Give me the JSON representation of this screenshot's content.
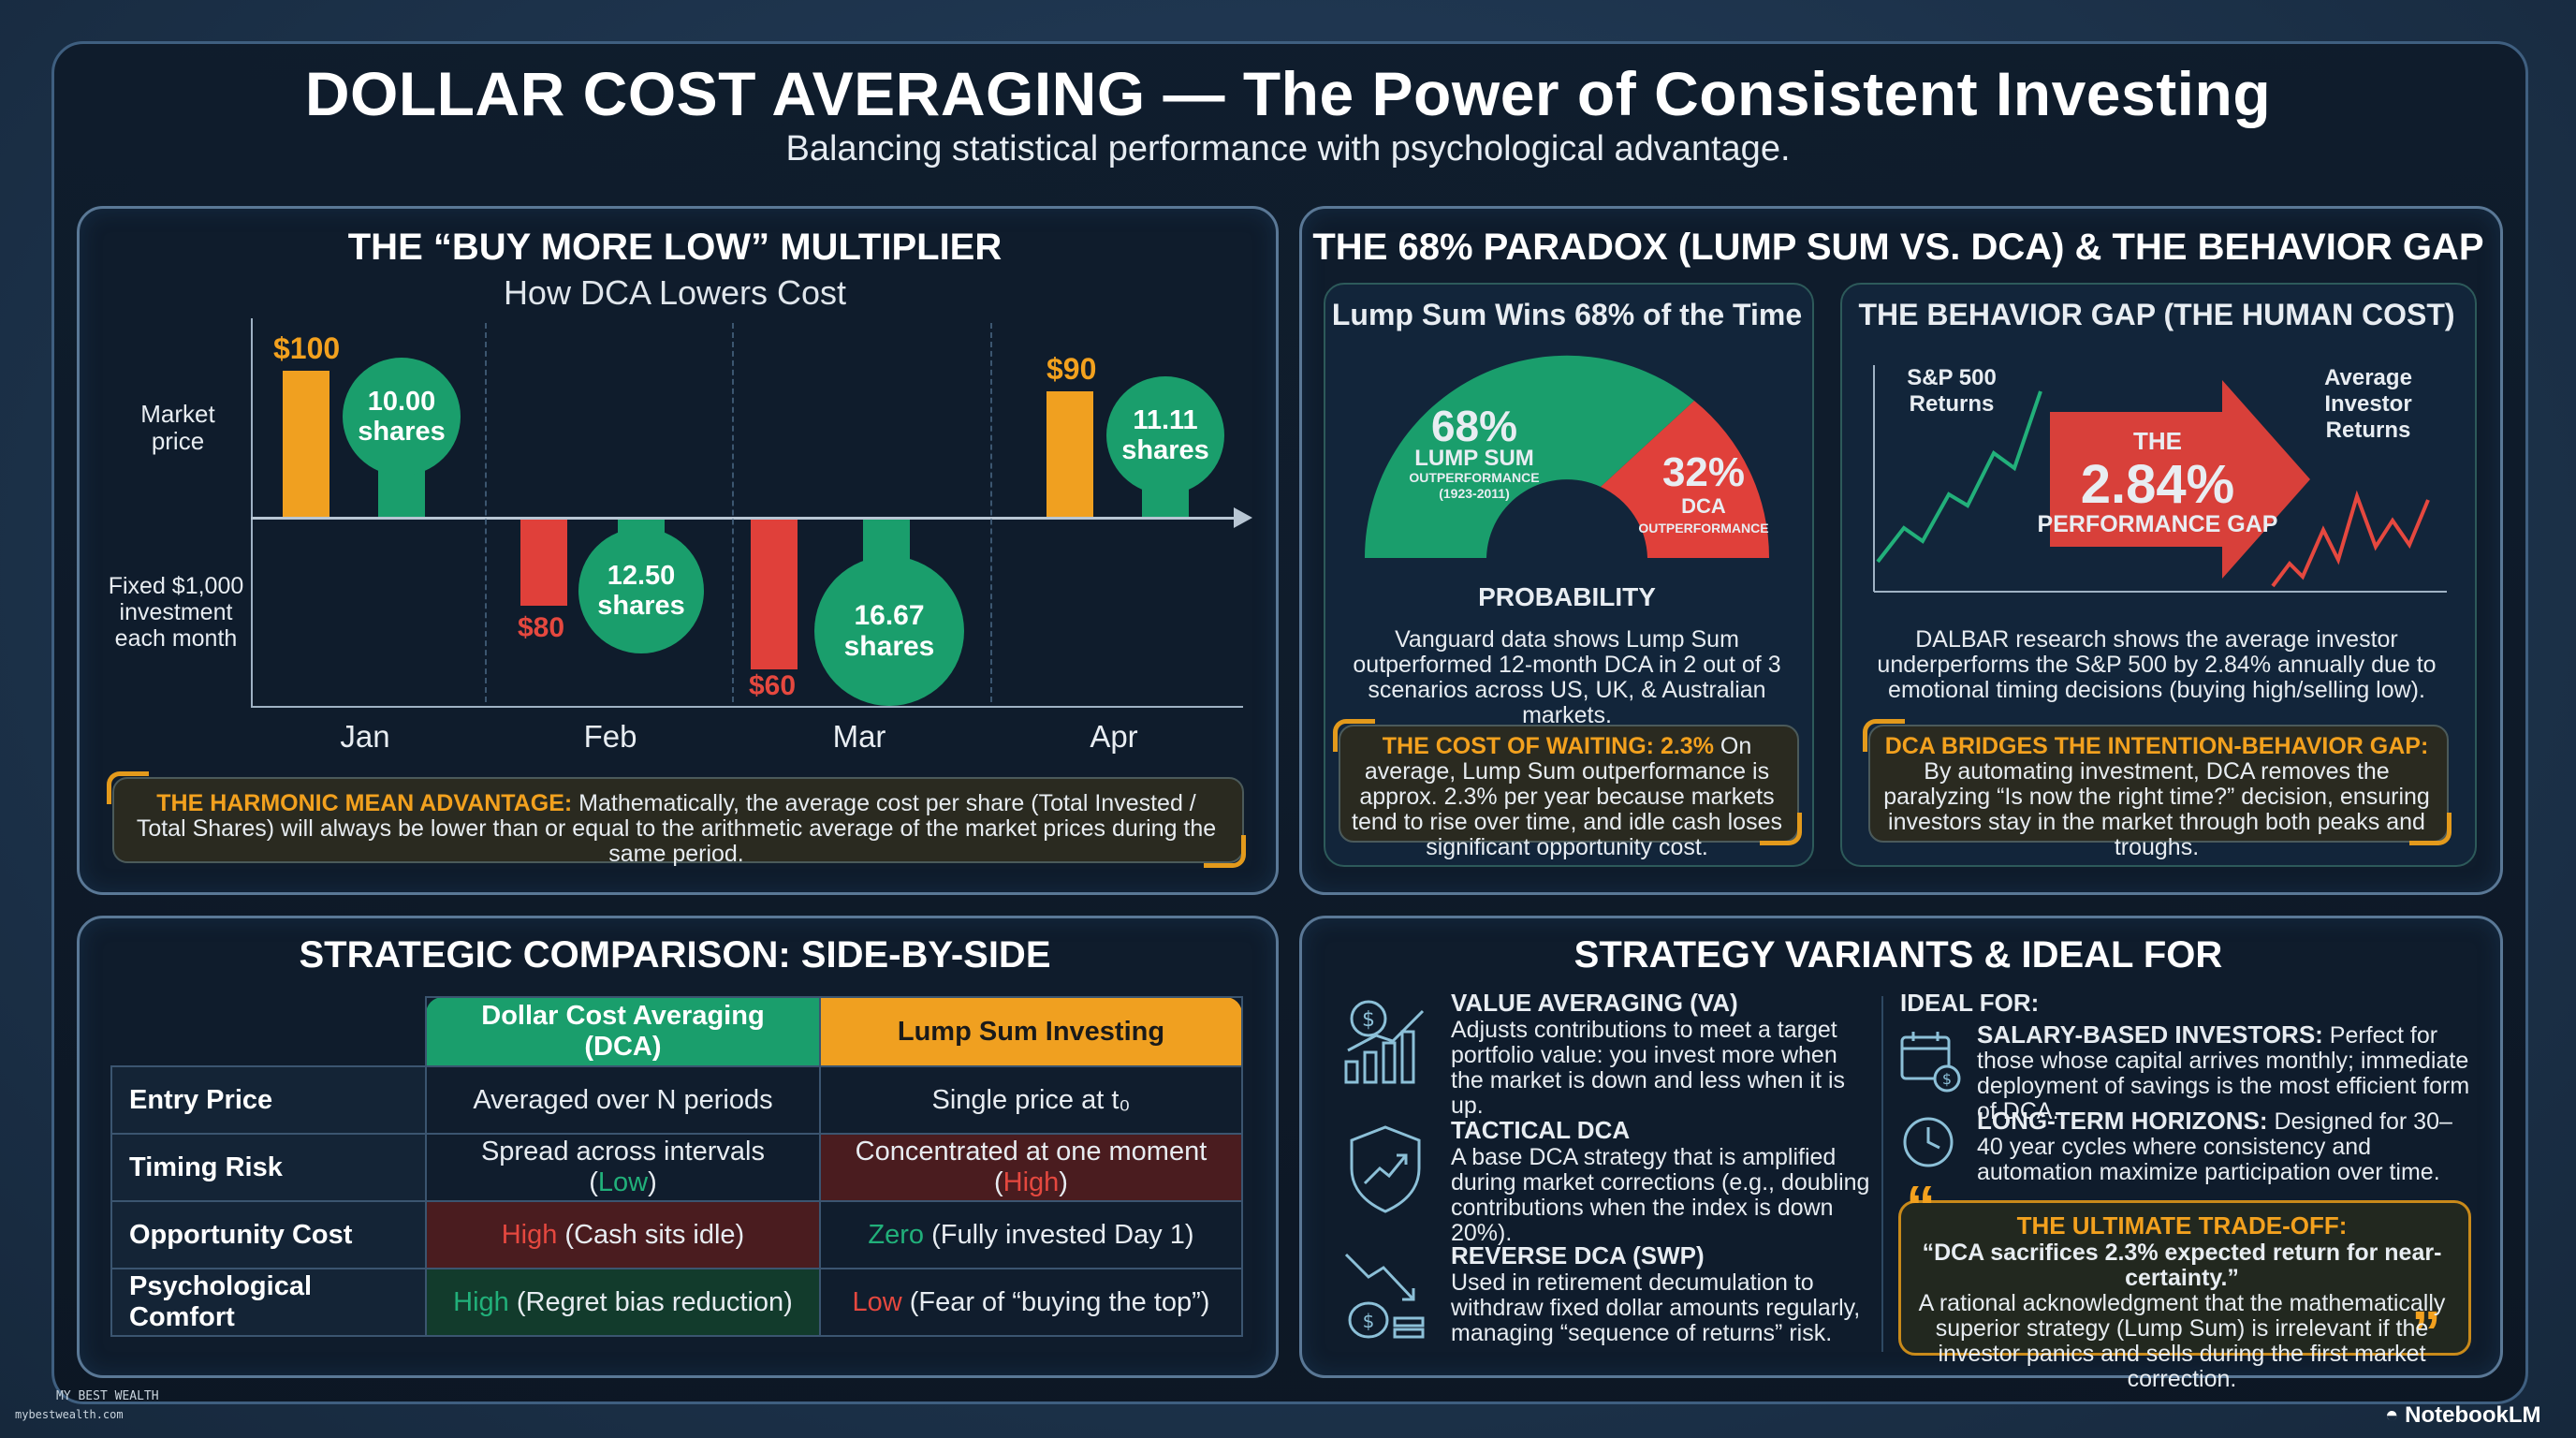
{
  "header": {
    "title": "DOLLAR COST AVERAGING — The Power of Consistent Investing",
    "subtitle": "Balancing statistical performance with psychological advantage."
  },
  "multiplier": {
    "title": "THE “BUY MORE LOW” MULTIPLIER",
    "subtitle": "How DCA Lowers Cost",
    "label_market": "Market price",
    "label_fixed": "Fixed $1,000 investment each month",
    "months": [
      {
        "name": "Jan",
        "price": "$100",
        "shares": "10.00 shares"
      },
      {
        "name": "Feb",
        "price": "$80",
        "shares": "12.50 shares"
      },
      {
        "name": "Mar",
        "price": "$60",
        "shares": "16.67 shares"
      },
      {
        "name": "Apr",
        "price": "$90",
        "shares": "11.11 shares"
      }
    ],
    "note_head": "THE HARMONIC MEAN ADVANTAGE:",
    "note_body": " Mathematically, the average cost per share (Total Invested / Total Shares) will always be lower than or equal to the arithmetic average of the market prices during the same period."
  },
  "paradox": {
    "title": "THE 68% PARADOX (LUMP SUM VS. DCA) & THE BEHAVIOR GAP",
    "left": {
      "title": "Lump Sum Wins 68% of the Time",
      "pct_ls": "68%",
      "ls_label": "LUMP SUM",
      "ls_small": "OUTPERFORMANCE (1923-2011)",
      "pct_dca": "32%",
      "dca_label": "DCA",
      "dca_small": "OUTPERFORMANCE",
      "probability": "PROBABILITY",
      "body": "Vanguard data shows Lump Sum outperformed 12-month DCA in 2 out of 3 scenarios across US, UK, & Australian markets.",
      "callout_head": "THE COST OF WAITING: 2.3%",
      "callout_body": " On average, Lump Sum outperformance is approx. 2.3% per year because markets tend to rise over time, and idle cash loses significant opportunity cost."
    },
    "right": {
      "title": "THE BEHAVIOR GAP (THE HUMAN COST)",
      "sp_label": "S&P 500 Returns",
      "avg_label": "Average Investor Returns",
      "the": "THE",
      "gap": "2.84%",
      "gap_label": "PERFORMANCE GAP",
      "body": "DALBAR research shows the average investor underperforms the S&P 500 by 2.84% annually due to emotional timing decisions (buying high/selling low).",
      "callout_head": "DCA BRIDGES THE INTENTION-BEHAVIOR GAP:",
      "callout_body": "By automating investment, DCA removes the paralyzing “Is now the right time?” decision, ensuring investors stay in the market through both peaks and troughs."
    }
  },
  "comparison": {
    "title": "STRATEGIC COMPARISON: SIDE-BY-SIDE",
    "col_dca": "Dollar Cost Averaging (DCA)",
    "col_ls": "Lump Sum Investing",
    "rows": [
      {
        "label": "Entry Price",
        "dca_a": "",
        "dca_b": "Averaged over N periods",
        "ls_a": "",
        "ls_b": "Single price at t₀"
      },
      {
        "label": "Timing Risk",
        "dca_a": "Spread across intervals (",
        "dca_b": "Low",
        "dca_c": ")",
        "ls_a": "Concentrated at one moment (",
        "ls_b": "High",
        "ls_c": ")"
      },
      {
        "label": "Opportunity Cost",
        "dca_a": "High",
        "dca_b": " (Cash sits idle)",
        "ls_a": "Zero",
        "ls_b": " (Fully invested Day 1)"
      },
      {
        "label": "Psychological Comfort",
        "dca_a": "High",
        "dca_b": " (Regret bias reduction)",
        "ls_a": "Low",
        "ls_b": " (Fear of “buying the top”)"
      }
    ]
  },
  "variants": {
    "title": "STRATEGY VARIANTS & IDEAL FOR",
    "items": [
      {
        "head": "VALUE AVERAGING (VA)",
        "body": "Adjusts contributions to meet a target portfolio value: you invest more when the market is down and less when it is up."
      },
      {
        "head": "TACTICAL DCA",
        "body": "A base DCA strategy that is amplified during market corrections (e.g., doubling contributions when the index is down 20%)."
      },
      {
        "head": "REVERSE DCA (SWP)",
        "body": "Used in retirement decumulation to withdraw fixed dollar amounts regularly, managing “sequence of returns” risk."
      }
    ],
    "ideal_title": "IDEAL FOR:",
    "ideal": [
      {
        "head": "SALARY-BASED INVESTORS:",
        "body": " Perfect for those whose capital arrives monthly; immediate deployment of savings is the most efficient form of DCA."
      },
      {
        "head": "LONG-TERM HORIZONS:",
        "body": " Designed for 30–40 year cycles where consistency and automation maximize participation over time."
      }
    ],
    "quote_head": "THE ULTIMATE TRADE-OFF:",
    "quote_line": "“DCA sacrifices 2.3% expected return for near-certainty.”",
    "quote_body": "A rational acknowledgment that the mathematically superior strategy (Lump Sum) is irrelevant if the investor panics and sells during the first market correction."
  },
  "footer": {
    "brand_left": "MY BEST WEALTH",
    "brand_url": "mybestwealth.com",
    "brand_right": "NotebookLM"
  }
}
